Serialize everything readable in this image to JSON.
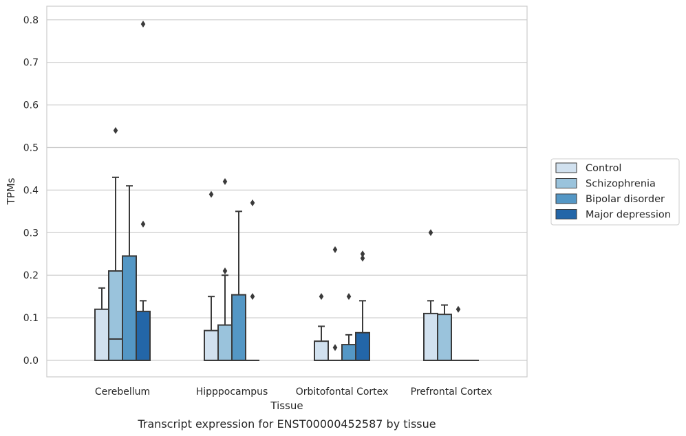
{
  "chart_data": {
    "type": "box",
    "title": "",
    "caption": "Transcript expression for ENST00000452587 by tissue",
    "xlabel": "Tissue",
    "ylabel": "TPMs",
    "ylim": [
      -0.04,
      0.83
    ],
    "yticks": [
      "0.0",
      "0.1",
      "0.2",
      "0.3",
      "0.4",
      "0.5",
      "0.6",
      "0.7",
      "0.8"
    ],
    "grid": "horizontal",
    "legend": "outside-right",
    "categories": [
      "Cerebellum",
      "Hipppocampus",
      "Orbitofontal Cortex",
      "Prefrontal Cortex"
    ],
    "series": [
      {
        "name": "Control",
        "color": "#d1e1ef",
        "boxes": [
          {
            "q1": 0,
            "median": 0,
            "q3": 0.12,
            "whisker_high": 0.17,
            "outliers": []
          },
          {
            "q1": 0,
            "median": 0,
            "q3": 0.07,
            "whisker_high": 0.15,
            "outliers": [
              0.39
            ]
          },
          {
            "q1": 0,
            "median": 0,
            "q3": 0.045,
            "whisker_high": 0.08,
            "outliers": [
              0.15
            ]
          },
          {
            "q1": 0,
            "median": 0,
            "q3": 0.11,
            "whisker_high": 0.14,
            "outliers": [
              0.3
            ]
          }
        ]
      },
      {
        "name": "Schizophrenia",
        "color": "#9ac3dc",
        "boxes": [
          {
            "q1": 0,
            "median": 0.05,
            "q3": 0.21,
            "whisker_high": 0.43,
            "outliers": [
              0.54
            ]
          },
          {
            "q1": 0,
            "median": 0,
            "q3": 0.083,
            "whisker_high": 0.2,
            "outliers": [
              0.21,
              0.42
            ]
          },
          {
            "q1": 0,
            "median": 0,
            "q3": 0,
            "whisker_high": 0,
            "outliers": [
              0.03,
              0.26
            ]
          },
          {
            "q1": 0,
            "median": 0,
            "q3": 0.108,
            "whisker_high": 0.13,
            "outliers": []
          }
        ]
      },
      {
        "name": "Bipolar disorder",
        "color": "#5497c5",
        "boxes": [
          {
            "q1": 0,
            "median": 0,
            "q3": 0.245,
            "whisker_high": 0.41,
            "outliers": []
          },
          {
            "q1": 0,
            "median": 0,
            "q3": 0.154,
            "whisker_high": 0.35,
            "outliers": []
          },
          {
            "q1": 0,
            "median": 0,
            "q3": 0.037,
            "whisker_high": 0.06,
            "outliers": [
              0.15
            ]
          },
          {
            "q1": 0,
            "median": 0,
            "q3": 0,
            "whisker_high": 0,
            "outliers": [
              0.12
            ]
          }
        ]
      },
      {
        "name": "Major depression",
        "color": "#2366a8",
        "boxes": [
          {
            "q1": 0,
            "median": 0,
            "q3": 0.115,
            "whisker_high": 0.14,
            "outliers": [
              0.32,
              0.79
            ]
          },
          {
            "q1": 0,
            "median": 0,
            "q3": 0,
            "whisker_high": 0,
            "outliers": [
              0.15,
              0.37
            ]
          },
          {
            "q1": 0,
            "median": 0,
            "q3": 0.065,
            "whisker_high": 0.14,
            "outliers": [
              0.24,
              0.25
            ]
          },
          {
            "q1": 0,
            "median": 0,
            "q3": 0,
            "whisker_high": 0,
            "outliers": []
          }
        ]
      }
    ]
  }
}
